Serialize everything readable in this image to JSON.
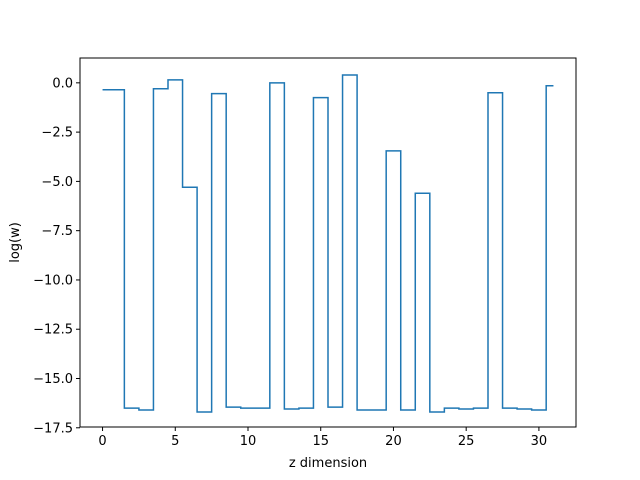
{
  "chart_data": {
    "type": "line",
    "drawstyle": "steps-mid",
    "title": "",
    "xlabel": "z dimension",
    "ylabel": "log(w)",
    "xlim": [
      -1.55,
      32.55
    ],
    "ylim": [
      -17.46,
      1.26
    ],
    "xticks": [
      0,
      5,
      10,
      15,
      20,
      25,
      30
    ],
    "xtick_labels": [
      "0",
      "5",
      "10",
      "15",
      "20",
      "25",
      "30"
    ],
    "yticks": [
      0.0,
      -2.5,
      -5.0,
      -7.5,
      -10.0,
      -12.5,
      -15.0,
      -17.5
    ],
    "ytick_labels": [
      "0.0",
      "−2.5",
      "−5.0",
      "−7.5",
      "−10.0",
      "−12.5",
      "−15.0",
      "−17.5"
    ],
    "grid": false,
    "legend": false,
    "series": [
      {
        "color": "#1f77b4",
        "x": [
          0,
          1,
          2,
          3,
          4,
          5,
          6,
          7,
          8,
          9,
          10,
          11,
          12,
          13,
          14,
          15,
          16,
          17,
          18,
          19,
          20,
          21,
          22,
          23,
          24,
          25,
          26,
          27,
          28,
          29,
          30,
          31
        ],
        "y": [
          -0.35,
          -0.35,
          -16.5,
          -16.6,
          -0.3,
          0.15,
          -5.3,
          -16.7,
          -0.55,
          -16.45,
          -16.5,
          -16.5,
          0.0,
          -16.55,
          -16.5,
          -0.75,
          -16.45,
          0.4,
          -16.6,
          -16.6,
          -3.45,
          -16.6,
          -5.6,
          -16.7,
          -16.5,
          -16.55,
          -16.5,
          -0.5,
          -16.5,
          -16.55,
          -16.6,
          -0.15
        ]
      }
    ]
  }
}
